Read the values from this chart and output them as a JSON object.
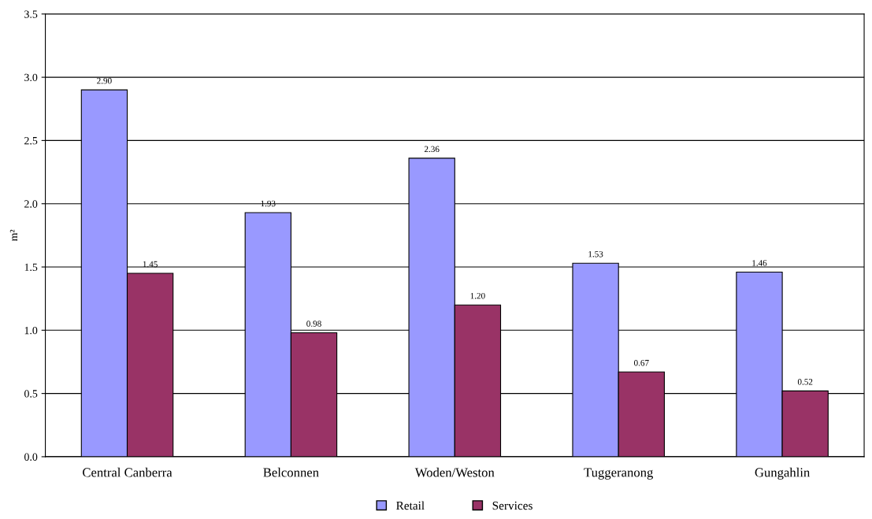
{
  "chart_data": {
    "type": "bar",
    "ylabel": "m²",
    "categories": [
      "Central Canberra",
      "Belconnen",
      "Woden/Weston",
      "Tuggeranong",
      "Gungahlin"
    ],
    "series": [
      {
        "name": "Retail",
        "color": "#9999ff",
        "values": [
          2.9,
          1.93,
          2.36,
          1.53,
          1.46
        ],
        "value_labels": [
          "2.90",
          "1.93",
          "2.36",
          "1.53",
          "1.46"
        ]
      },
      {
        "name": "Services",
        "color": "#993366",
        "values": [
          1.45,
          0.98,
          1.2,
          0.67,
          0.52
        ],
        "value_labels": [
          "1.45",
          "0.98",
          "1.20",
          "0.67",
          "0.52"
        ]
      }
    ],
    "ylim": [
      0,
      3.5
    ],
    "yticks": [
      {
        "value": 0,
        "label": "0.0"
      },
      {
        "value": 0.5,
        "label": "0.5"
      },
      {
        "value": 1,
        "label": "1.0"
      },
      {
        "value": 1.5,
        "label": "1.5"
      },
      {
        "value": 2,
        "label": "2.0"
      },
      {
        "value": 2.5,
        "label": "2.5"
      },
      {
        "value": 3,
        "label": "3.0"
      },
      {
        "value": 3.5,
        "label": "3.5"
      }
    ],
    "grid": "y",
    "legend": "bottom"
  }
}
